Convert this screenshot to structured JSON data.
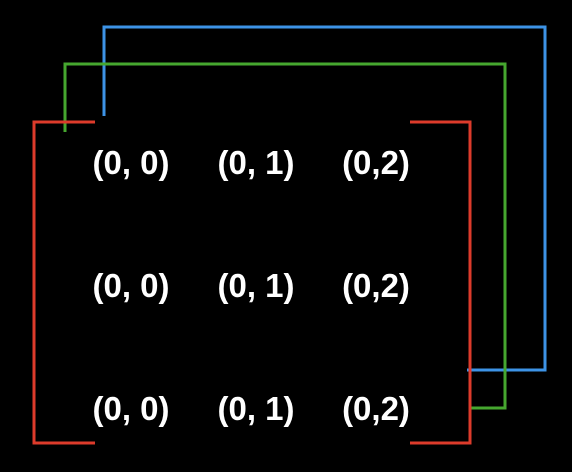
{
  "colors": {
    "background": "#000000",
    "text": "#ffffff",
    "front_bracket": "#dd3b2b",
    "middle_layer": "#46a72f",
    "back_layer": "#3d93e6"
  },
  "grid": {
    "rows": [
      [
        "(0, 0)",
        "(0, 1)",
        "(0,2)"
      ],
      [
        "(0, 0)",
        "(0, 1)",
        "(0,2)"
      ],
      [
        "(0, 0)",
        "(0, 1)",
        "(0,2)"
      ]
    ]
  }
}
